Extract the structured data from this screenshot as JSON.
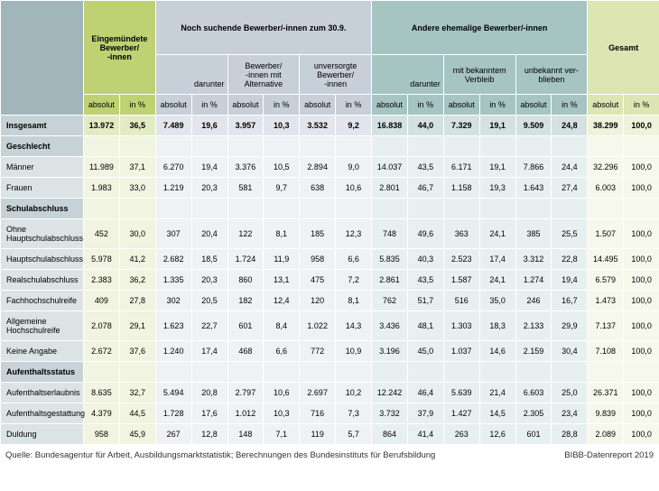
{
  "headers": {
    "g1": "Eingemündete Bewerber/\n-innen",
    "g2": "Noch suchende Bewerber/-innen zum 30.9.",
    "g3": "Andere ehemalige Bewerber/-innen",
    "g4": "Gesamt",
    "darunter": "darunter",
    "sub1": "Bewerber/\n-innen mit Alternative",
    "sub2": "unversorgte Bewerber/\n-innen",
    "sub3": "mit bekanntem Verbleib",
    "sub4": "unbekannt ver-\nblieben",
    "abs": "absolut",
    "pct": "in %"
  },
  "rows": [
    {
      "type": "total",
      "label": "Insgesamt",
      "v": [
        "13.972",
        "36,5",
        "7.489",
        "19,6",
        "3.957",
        "10,3",
        "3.532",
        "9,2",
        "16.838",
        "44,0",
        "7.329",
        "19,1",
        "9.509",
        "24,8",
        "38.299",
        "100,0"
      ]
    },
    {
      "type": "section",
      "label": "Geschlecht"
    },
    {
      "type": "data",
      "label": "Männer",
      "v": [
        "11.989",
        "37,1",
        "6.270",
        "19,4",
        "3.376",
        "10,5",
        "2.894",
        "9,0",
        "14.037",
        "43,5",
        "6.171",
        "19,1",
        "7.866",
        "24,4",
        "32.296",
        "100,0"
      ]
    },
    {
      "type": "data",
      "label": "Frauen",
      "v": [
        "1.983",
        "33,0",
        "1.219",
        "20,3",
        "581",
        "9,7",
        "638",
        "10,6",
        "2.801",
        "46,7",
        "1.158",
        "19,3",
        "1.643",
        "27,4",
        "6.003",
        "100,0"
      ]
    },
    {
      "type": "section",
      "label": "Schulabschluss"
    },
    {
      "type": "data",
      "label": "Ohne Hauptschulabschluss",
      "v": [
        "452",
        "30,0",
        "307",
        "20,4",
        "122",
        "8,1",
        "185",
        "12,3",
        "748",
        "49,6",
        "363",
        "24,1",
        "385",
        "25,5",
        "1.507",
        "100,0"
      ]
    },
    {
      "type": "data",
      "label": "Hauptschulabschluss",
      "v": [
        "5.978",
        "41,2",
        "2.682",
        "18,5",
        "1.724",
        "11,9",
        "958",
        "6,6",
        "5.835",
        "40,3",
        "2.523",
        "17,4",
        "3.312",
        "22,8",
        "14.495",
        "100,0"
      ]
    },
    {
      "type": "data",
      "label": "Realschulabschluss",
      "v": [
        "2.383",
        "36,2",
        "1.335",
        "20,3",
        "860",
        "13,1",
        "475",
        "7,2",
        "2.861",
        "43,5",
        "1.587",
        "24,1",
        "1.274",
        "19,4",
        "6.579",
        "100,0"
      ]
    },
    {
      "type": "data",
      "label": "Fachhochschulreife",
      "v": [
        "409",
        "27,8",
        "302",
        "20,5",
        "182",
        "12,4",
        "120",
        "8,1",
        "762",
        "51,7",
        "516",
        "35,0",
        "246",
        "16,7",
        "1.473",
        "100,0"
      ]
    },
    {
      "type": "data",
      "label": "Allgemeine Hochschulreife",
      "v": [
        "2.078",
        "29,1",
        "1.623",
        "22,7",
        "601",
        "8,4",
        "1.022",
        "14,3",
        "3.436",
        "48,1",
        "1.303",
        "18,3",
        "2.133",
        "29,9",
        "7.137",
        "100,0"
      ]
    },
    {
      "type": "data",
      "label": "Keine Angabe",
      "v": [
        "2.672",
        "37,6",
        "1.240",
        "17,4",
        "468",
        "6,6",
        "772",
        "10,9",
        "3.196",
        "45,0",
        "1.037",
        "14,6",
        "2.159",
        "30,4",
        "7.108",
        "100,0"
      ]
    },
    {
      "type": "section",
      "label": "Aufenthaltsstatus"
    },
    {
      "type": "data",
      "label": "Aufenthaltserlaubnis",
      "v": [
        "8.635",
        "32,7",
        "5.494",
        "20,8",
        "2.797",
        "10,6",
        "2.697",
        "10,2",
        "12.242",
        "46,4",
        "5.639",
        "21,4",
        "6.603",
        "25,0",
        "26.371",
        "100,0"
      ]
    },
    {
      "type": "data",
      "label": "Aufenthaltsgestattung",
      "v": [
        "4.379",
        "44,5",
        "1.728",
        "17,6",
        "1.012",
        "10,3",
        "716",
        "7,3",
        "3.732",
        "37,9",
        "1.427",
        "14,5",
        "2.305",
        "23,4",
        "9.839",
        "100,0"
      ]
    },
    {
      "type": "data",
      "label": "Duldung",
      "v": [
        "958",
        "45,9",
        "267",
        "12,8",
        "148",
        "7,1",
        "119",
        "5,7",
        "864",
        "41,4",
        "263",
        "12,6",
        "601",
        "28,8",
        "2.089",
        "100,0"
      ]
    }
  ],
  "source": "Quelle: Bundesagentur für Arbeit, Ausbildungsmarktstatistik; Berechnungen des Bundesinstituts für Berufsbildung",
  "report": "BIBB-Datenreport 2019",
  "colgroups": [
    "lg1",
    "lg1",
    "lg2",
    "lg2",
    "lg2",
    "lg2",
    "lg2",
    "lg2",
    "lg3",
    "lg3",
    "lg3",
    "lg3",
    "lg3",
    "lg3",
    "lg4",
    "lg4"
  ],
  "colgroups_light": [
    "llg1",
    "llg1",
    "llg2",
    "llg2",
    "llg2",
    "llg2",
    "llg2",
    "llg2",
    "llg3",
    "llg3",
    "llg3",
    "llg3",
    "llg3",
    "llg3",
    "llg4",
    "llg4"
  ]
}
